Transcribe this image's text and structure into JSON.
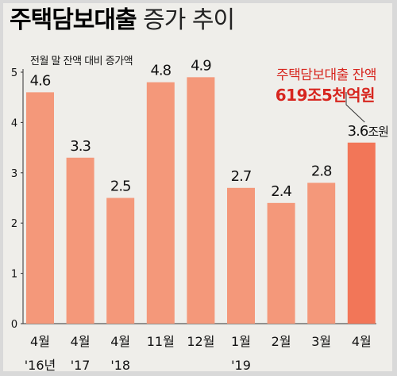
{
  "title_bold": "주택담보대출",
  "title_light": "증가 추이",
  "subtitle": "전월 말 잔액 대비 증가액",
  "annotation": {
    "line1": "주택담보대출 잔액",
    "line2": "619조5천억원"
  },
  "colors": {
    "bar": "#f4987a",
    "bar_highlight": "#f27658",
    "annotation_text": "#d7261f",
    "background": "#efeeea"
  },
  "chart_data": {
    "type": "bar",
    "title": "주택담보대출 증가 추이",
    "ylabel": "전월 말 잔액 대비 증가액",
    "ylim": [
      0,
      5
    ],
    "yticks": [
      "0",
      "1",
      "2",
      "3",
      "4",
      "5"
    ],
    "grid": false,
    "categories": [
      {
        "month": "4월",
        "year": "'16년"
      },
      {
        "month": "4월",
        "year": "'17"
      },
      {
        "month": "4월",
        "year": "'18"
      },
      {
        "month": "11월",
        "year": ""
      },
      {
        "month": "12월",
        "year": ""
      },
      {
        "month": "1월",
        "year": "'19"
      },
      {
        "month": "2월",
        "year": ""
      },
      {
        "month": "3월",
        "year": ""
      },
      {
        "month": "4월",
        "year": ""
      }
    ],
    "values": [
      4.6,
      3.3,
      2.5,
      4.8,
      4.9,
      2.7,
      2.4,
      2.8,
      3.6
    ],
    "value_labels": [
      "4.6",
      "3.3",
      "2.5",
      "4.8",
      "4.9",
      "2.7",
      "2.4",
      "2.8",
      "3.6"
    ],
    "last_value_unit": "조원",
    "highlight_index": 8
  }
}
